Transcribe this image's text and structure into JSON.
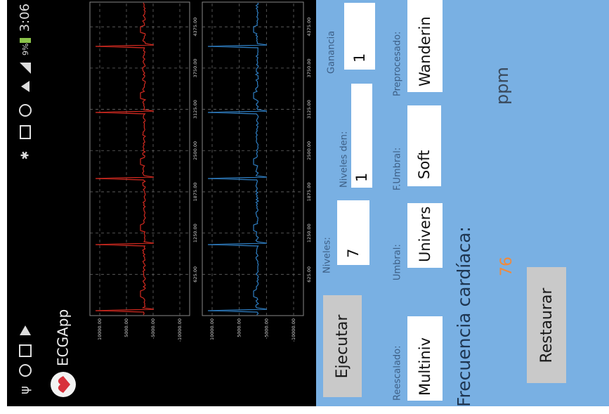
{
  "status_bar": {
    "battery": "9%",
    "time": "3:06"
  },
  "app_bar": {
    "title": "ECGApp"
  },
  "charts": [
    {
      "y_labels": [
        "10000.00",
        "5000.00",
        "-5000.00",
        "-10000.00"
      ],
      "x_labels": [
        "625.00",
        "1250.00",
        "1875.00",
        "2500.00",
        "3125.00",
        "3750.00",
        "4375.00"
      ]
    },
    {
      "y_labels": [
        "10000.00",
        "5000.00",
        "-5000.00",
        "-10000.00"
      ],
      "x_labels": [
        "625.00",
        "1250.00",
        "1875.00",
        "2500.00",
        "3125.00",
        "3750.00",
        "4375.00"
      ]
    }
  ],
  "controls": {
    "run_button": "Ejecutar",
    "levels": {
      "label": "Niveles:",
      "value": "7"
    },
    "denoise_levels": {
      "label": "Niveles den:",
      "value": "1"
    },
    "gain": {
      "label": "Ganancia",
      "value": "1"
    },
    "rescaling": {
      "label": "Reescalado:",
      "value": "Multiniv"
    },
    "threshold": {
      "label": "Umbral:",
      "value": "Univers"
    },
    "threshold_function": {
      "label": "F.Umbral:",
      "value": "Soft"
    },
    "preprocessing": {
      "label": "Preprocesado:",
      "value": "Wanderin"
    }
  },
  "heart_rate": {
    "label": "Frecuencia cardíaca:",
    "value": "76",
    "unit": "ppm"
  },
  "reset_button": "Restaurar"
}
